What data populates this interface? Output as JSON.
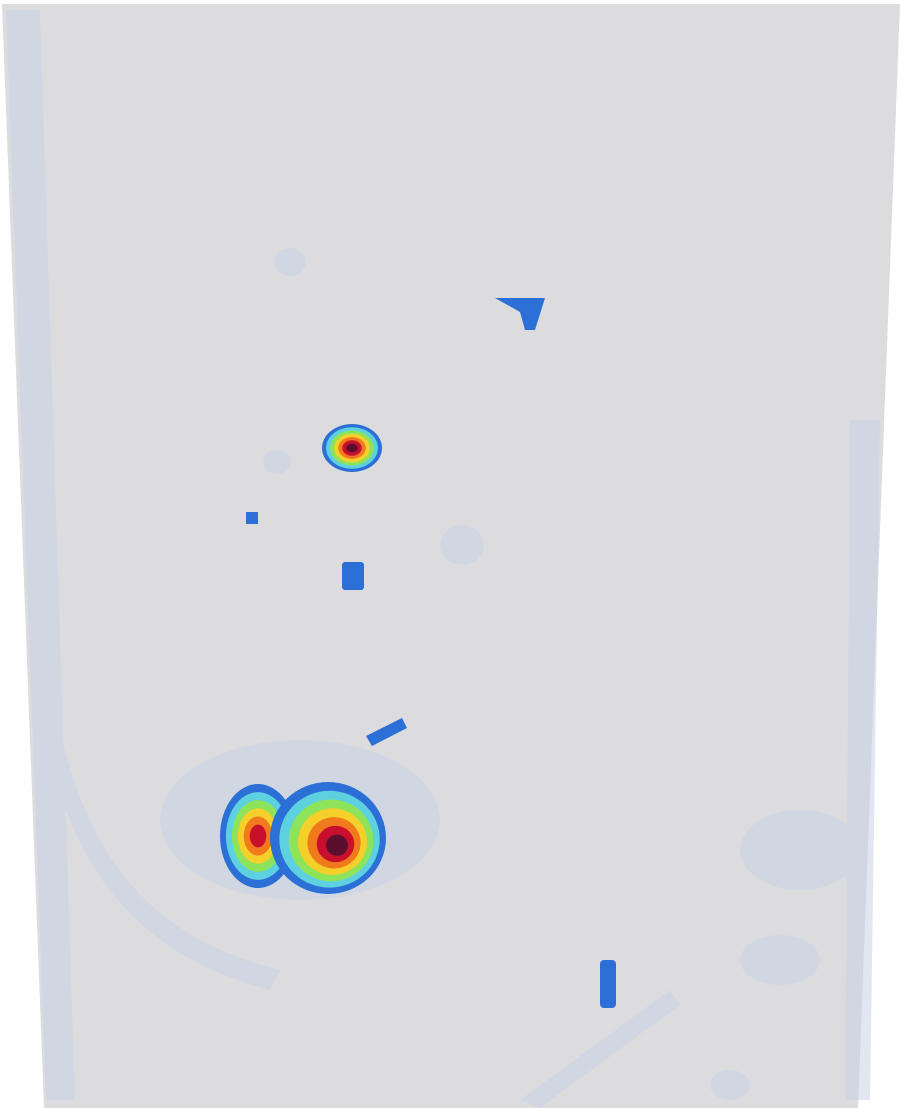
{
  "chart_data": {
    "type": "heatmap",
    "colors": {
      "surface": "#dcdcde",
      "haze": "#c9d3e6",
      "low": "#2c6fd6",
      "mid_low": "#5ed1e0",
      "mid": "#8de35a",
      "mid_high": "#f5d02a",
      "high": "#f07a1c",
      "very_high": "#c8102e",
      "peak": "#5a0f2e"
    },
    "hotspots": [
      {
        "name": "upper-hotspot",
        "level": "peak"
      },
      {
        "name": "lower-left-hotspot",
        "level": "very_high"
      },
      {
        "name": "lower-right-hotspot",
        "level": "peak"
      },
      {
        "name": "small-blue-spot-top",
        "level": "low"
      },
      {
        "name": "small-blue-spot-middle",
        "level": "low"
      },
      {
        "name": "small-blue-streak",
        "level": "low"
      },
      {
        "name": "small-blue-spot-bottom",
        "level": "low"
      }
    ]
  }
}
